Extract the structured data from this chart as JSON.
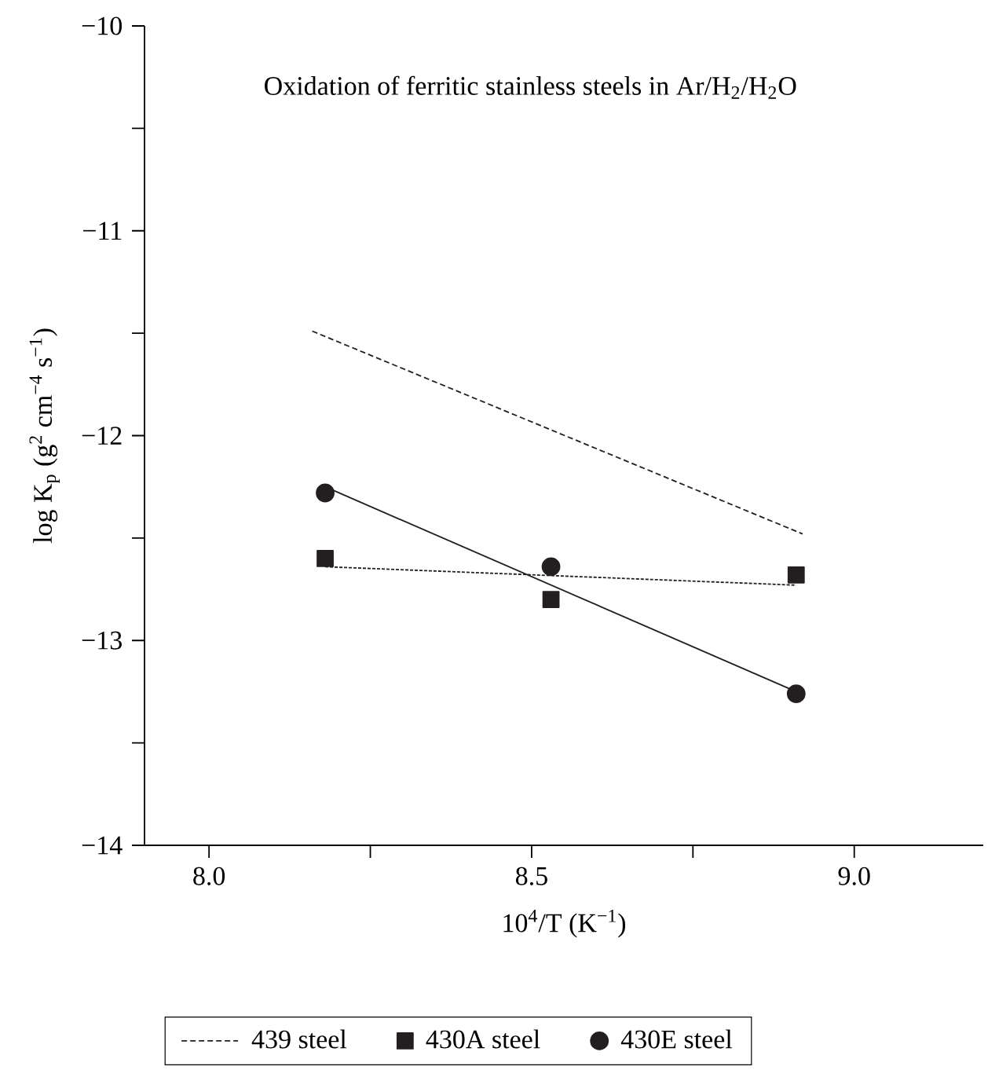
{
  "chart_data": {
    "type": "scatter",
    "title": "Oxidation of ferritic stainless steels in Ar/H$_{2}$/H$_{2}$O",
    "xlabel": "10$^{4}$/T (K$^{−1}$)",
    "ylabel": "log K$_{p}$ (g$^{2}$ cm$^{−4}$ s$^{−1}$)",
    "xlim": [
      7.9,
      9.2
    ],
    "ylim": [
      -14,
      -10
    ],
    "xticks": [
      {
        "value": 8.0,
        "label": "8.0"
      },
      {
        "value": 8.5,
        "label": "8.5"
      },
      {
        "value": 9.0,
        "label": "9.0"
      }
    ],
    "yticks": [
      {
        "value": -14,
        "label": "−14"
      },
      {
        "value": -13,
        "label": "−13"
      },
      {
        "value": -12,
        "label": "−12"
      },
      {
        "value": -11,
        "label": "−11"
      },
      {
        "value": -10,
        "label": "−10"
      }
    ],
    "legend": "bottom",
    "grid": false,
    "series": [
      {
        "name": "439 steel",
        "type": "line",
        "color": "#231f20",
        "line_style": "dashed",
        "marker": "none",
        "x": [
          8.16,
          8.92
        ],
        "values": [
          -11.49,
          -12.48
        ]
      },
      {
        "name": "430A steel",
        "color": "#231f20",
        "marker": "square",
        "x": [
          8.18,
          8.53,
          8.91
        ],
        "values": [
          -12.6,
          -12.8,
          -12.68
        ]
      },
      {
        "type": "line",
        "color": "#231f20",
        "line_style": "dotted",
        "marker": "none",
        "x": [
          8.18,
          8.91
        ],
        "values": [
          -12.64,
          -12.73
        ]
      },
      {
        "name": "430E steel",
        "color": "#231f20",
        "marker": "circle",
        "x": [
          8.18,
          8.53,
          8.91
        ],
        "values": [
          -12.28,
          -12.64,
          -13.26
        ]
      },
      {
        "type": "line",
        "color": "#231f20",
        "line_style": "solid",
        "marker": "none",
        "x": [
          8.18,
          8.91
        ],
        "values": [
          -12.25,
          -13.25
        ]
      }
    ]
  }
}
